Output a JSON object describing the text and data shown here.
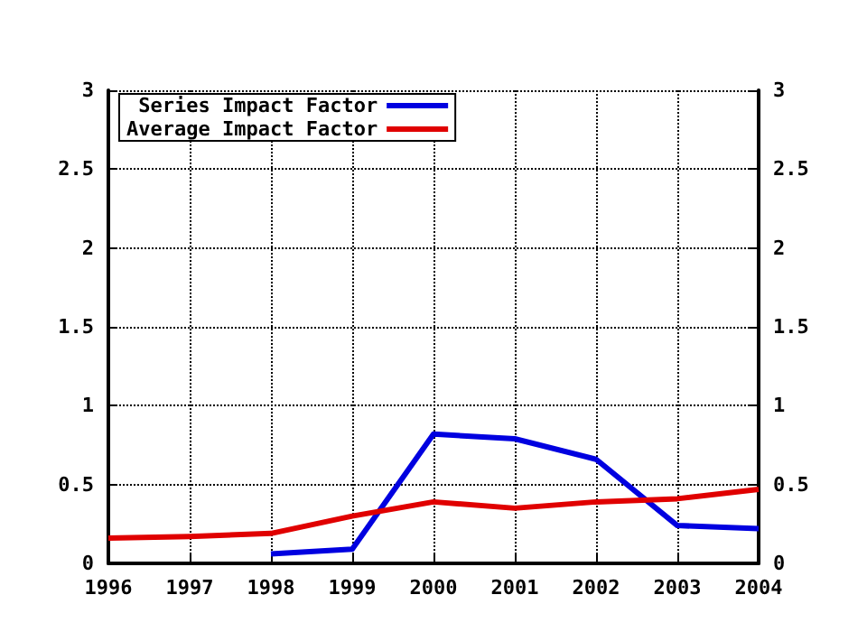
{
  "chart_data": {
    "type": "line",
    "x": [
      1996,
      1997,
      1998,
      1999,
      2000,
      2001,
      2002,
      2003,
      2004
    ],
    "series": [
      {
        "name": "Series Impact Factor",
        "color": "#0000e0",
        "values": [
          null,
          null,
          0.06,
          0.09,
          0.82,
          0.79,
          0.66,
          0.24,
          0.22
        ]
      },
      {
        "name": "Average Impact Factor",
        "color": "#e00000",
        "values": [
          0.16,
          0.17,
          0.19,
          0.3,
          0.39,
          0.35,
          0.39,
          0.41,
          0.47
        ]
      }
    ],
    "xlim": [
      1996,
      2004
    ],
    "xticks": [
      1996,
      1997,
      1998,
      1999,
      2000,
      2001,
      2002,
      2003,
      2004
    ],
    "ylim": [
      0,
      3
    ],
    "yticks": [
      0,
      0.5,
      1,
      1.5,
      2,
      2.5,
      3
    ],
    "y2lim": [
      0,
      3
    ],
    "y2ticks": [
      0,
      0.5,
      1,
      1.5,
      2,
      2.5,
      3
    ],
    "grid": true,
    "legend": "top left",
    "marker": "none",
    "line_style": "solid"
  }
}
